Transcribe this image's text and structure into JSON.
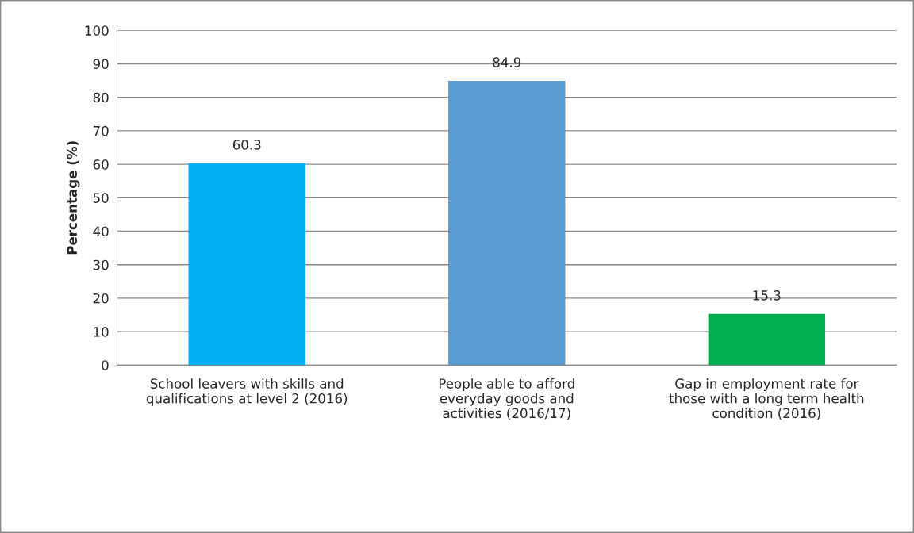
{
  "chart_data": {
    "type": "bar",
    "ylabel": "Percentage (%)",
    "categories": [
      "School leavers with skills and\nqualifications at level 2 (2016)",
      "People able to afford\neveryday goods and\nactivities (2016/17)",
      "Gap in employment rate for\nthose with a long term health\ncondition (2016)"
    ],
    "values": [
      60.3,
      84.9,
      15.3
    ],
    "colors": [
      "#00b0f0",
      "#5b9bd5",
      "#00b050"
    ],
    "ylim": [
      0,
      100
    ],
    "yticks": [
      0,
      10,
      20,
      30,
      40,
      50,
      60,
      70,
      80,
      90,
      100
    ],
    "grid": "y",
    "data_labels": true
  }
}
